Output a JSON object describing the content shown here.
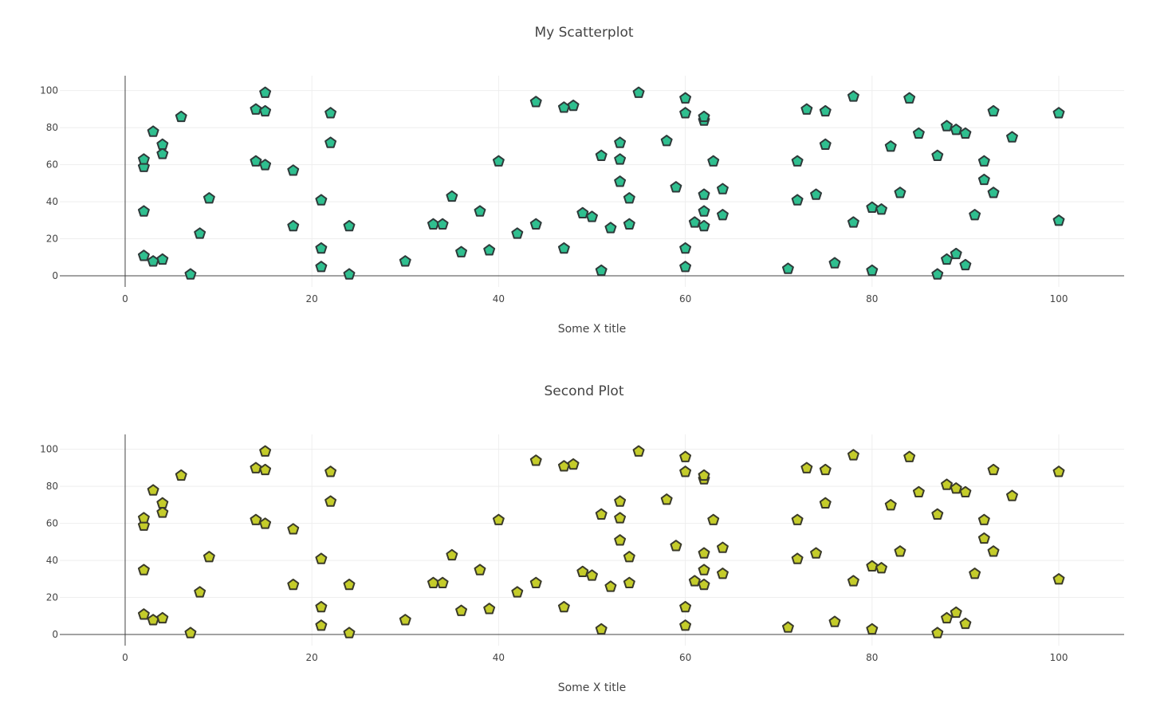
{
  "chart_data": [
    {
      "type": "scatter",
      "title": "My Scatterplot",
      "xlabel": "Some X title",
      "ylabel": "",
      "xlim": [
        -7,
        107
      ],
      "ylim": [
        -6,
        108
      ],
      "xticks": [
        0,
        20,
        40,
        60,
        80,
        100
      ],
      "yticks": [
        0,
        20,
        40,
        60,
        80,
        100
      ],
      "grid": true,
      "marker": {
        "symbol": "pentagon",
        "fill": "#2fbf8f",
        "stroke": "#2f3a3a"
      },
      "x": [
        2,
        2,
        2,
        2,
        3,
        3,
        4,
        4,
        4,
        6,
        7,
        8,
        9,
        14,
        14,
        15,
        15,
        15,
        18,
        18,
        21,
        21,
        21,
        22,
        22,
        24,
        24,
        30,
        33,
        34,
        35,
        36,
        38,
        39,
        40,
        42,
        44,
        44,
        47,
        47,
        48,
        49,
        50,
        51,
        51,
        52,
        53,
        53,
        53,
        54,
        54,
        55,
        58,
        59,
        60,
        60,
        60,
        60,
        61,
        62,
        62,
        62,
        62,
        62,
        63,
        64,
        64,
        71,
        72,
        72,
        73,
        74,
        75,
        75,
        76,
        78,
        78,
        80,
        80,
        81,
        82,
        83,
        84,
        85,
        87,
        87,
        88,
        88,
        89,
        89,
        90,
        90,
        91,
        92,
        92,
        93,
        93,
        95,
        100,
        100
      ],
      "y": [
        11,
        35,
        59,
        63,
        8,
        78,
        9,
        66,
        71,
        86,
        1,
        23,
        42,
        62,
        90,
        60,
        89,
        99,
        27,
        57,
        5,
        15,
        41,
        72,
        88,
        1,
        27,
        8,
        28,
        28,
        43,
        13,
        35,
        14,
        62,
        23,
        28,
        94,
        15,
        91,
        92,
        34,
        32,
        3,
        65,
        26,
        51,
        63,
        72,
        28,
        42,
        99,
        73,
        48,
        5,
        15,
        88,
        96,
        29,
        27,
        35,
        44,
        84,
        86,
        62,
        33,
        47,
        4,
        41,
        62,
        90,
        44,
        71,
        89,
        7,
        29,
        97,
        3,
        37,
        36,
        70,
        45,
        96,
        77,
        1,
        65,
        9,
        81,
        12,
        79,
        6,
        77,
        33,
        52,
        62,
        45,
        89,
        75,
        30,
        88
      ]
    },
    {
      "type": "scatter",
      "title": "Second Plot",
      "xlabel": "Some X title",
      "ylabel": "",
      "xlim": [
        -7,
        107
      ],
      "ylim": [
        -6,
        108
      ],
      "xticks": [
        0,
        20,
        40,
        60,
        80,
        100
      ],
      "yticks": [
        0,
        20,
        40,
        60,
        80,
        100
      ],
      "grid": true,
      "marker": {
        "symbol": "pentagon",
        "fill": "#c4cc2a",
        "stroke": "#3a3a2a"
      },
      "x": [
        2,
        2,
        2,
        2,
        3,
        3,
        4,
        4,
        4,
        6,
        7,
        8,
        9,
        14,
        14,
        15,
        15,
        15,
        18,
        18,
        21,
        21,
        21,
        22,
        22,
        24,
        24,
        30,
        33,
        34,
        35,
        36,
        38,
        39,
        40,
        42,
        44,
        44,
        47,
        47,
        48,
        49,
        50,
        51,
        51,
        52,
        53,
        53,
        53,
        54,
        54,
        55,
        58,
        59,
        60,
        60,
        60,
        60,
        61,
        62,
        62,
        62,
        62,
        62,
        63,
        64,
        64,
        71,
        72,
        72,
        73,
        74,
        75,
        75,
        76,
        78,
        78,
        80,
        80,
        81,
        82,
        83,
        84,
        85,
        87,
        87,
        88,
        88,
        89,
        89,
        90,
        90,
        91,
        92,
        92,
        93,
        93,
        95,
        100,
        100
      ],
      "y": [
        11,
        35,
        59,
        63,
        8,
        78,
        9,
        66,
        71,
        86,
        1,
        23,
        42,
        62,
        90,
        60,
        89,
        99,
        27,
        57,
        5,
        15,
        41,
        72,
        88,
        1,
        27,
        8,
        28,
        28,
        43,
        13,
        35,
        14,
        62,
        23,
        28,
        94,
        15,
        91,
        92,
        34,
        32,
        3,
        65,
        26,
        51,
        63,
        72,
        28,
        42,
        99,
        73,
        48,
        5,
        15,
        88,
        96,
        29,
        27,
        35,
        44,
        84,
        86,
        62,
        33,
        47,
        4,
        41,
        62,
        90,
        44,
        71,
        89,
        7,
        29,
        97,
        3,
        37,
        36,
        70,
        45,
        96,
        77,
        1,
        65,
        9,
        81,
        12,
        79,
        6,
        77,
        33,
        52,
        62,
        45,
        89,
        75,
        30,
        88
      ]
    }
  ]
}
